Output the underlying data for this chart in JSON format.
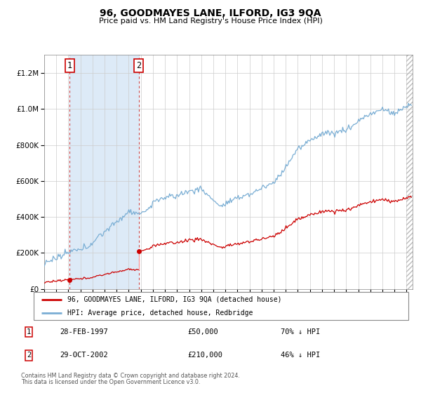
{
  "title": "96, GOODMAYES LANE, ILFORD, IG3 9QA",
  "subtitle": "Price paid vs. HM Land Registry's House Price Index (HPI)",
  "sale1_date_num": 1997.12,
  "sale1_price": 50000,
  "sale1_label": "28-FEB-1997",
  "sale1_amount": "£50,000",
  "sale1_hpi": "70% ↓ HPI",
  "sale2_date_num": 2002.83,
  "sale2_price": 210000,
  "sale2_label": "29-OCT-2002",
  "sale2_amount": "£210,000",
  "sale2_hpi": "46% ↓ HPI",
  "red_line_color": "#cc0000",
  "blue_line_color": "#7aaed4",
  "shade_color": "#ddeaf7",
  "grid_color": "#cccccc",
  "background_color": "#ffffff",
  "legend_label_red": "96, GOODMAYES LANE, ILFORD, IG3 9QA (detached house)",
  "legend_label_blue": "HPI: Average price, detached house, Redbridge",
  "footnote1": "Contains HM Land Registry data © Crown copyright and database right 2024.",
  "footnote2": "This data is licensed under the Open Government Licence v3.0.",
  "ylim_max": 1300000,
  "xmin": 1995.0,
  "xmax": 2025.5
}
